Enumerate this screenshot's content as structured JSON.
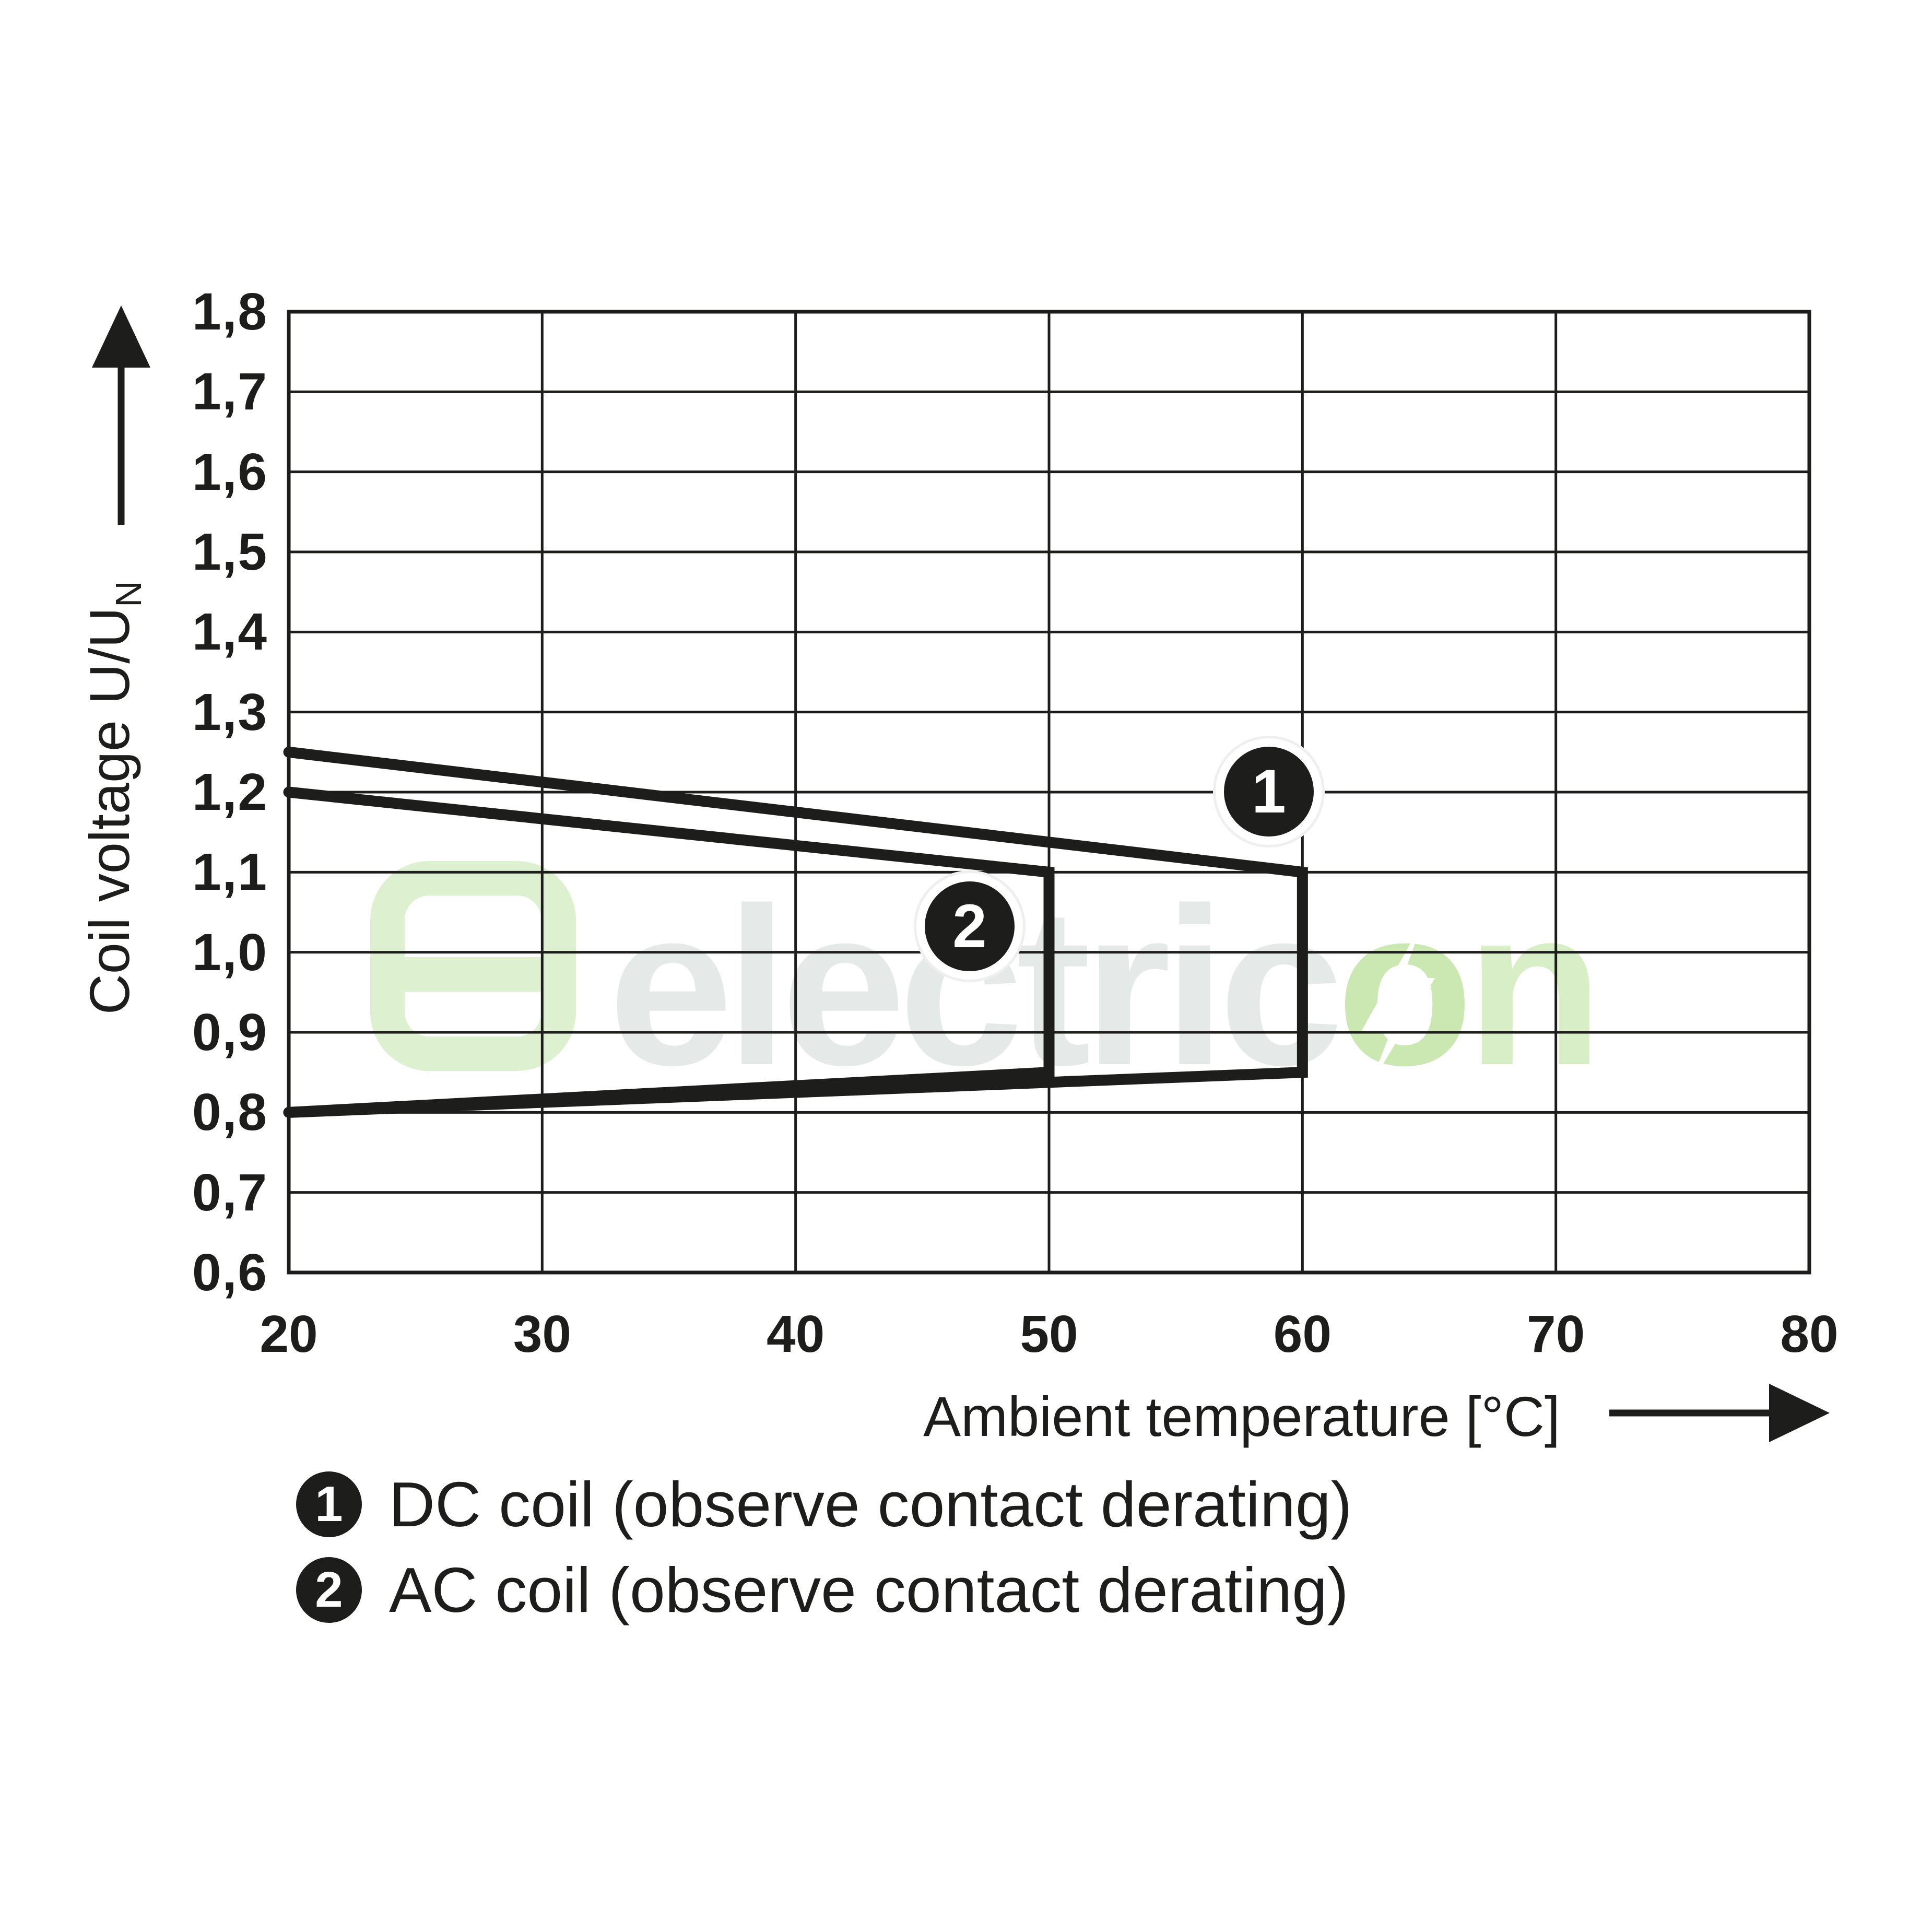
{
  "watermark": {
    "text_gray": "electric",
    "text_o": "o",
    "text_n": "n"
  },
  "y_axis": {
    "title_main": "Coil voltage U/U",
    "title_sub": "N",
    "tick_labels": [
      "1,8",
      "1,7",
      "1,6",
      "1,5",
      "1,4",
      "1,3",
      "1,2",
      "1,1",
      "1,0",
      "0,9",
      "0,8",
      "0,7",
      "0,6"
    ]
  },
  "x_axis": {
    "title": "Ambient temperature [°C]",
    "tick_labels": [
      "20",
      "30",
      "40",
      "50",
      "60",
      "70",
      "80"
    ]
  },
  "legend": {
    "items": [
      {
        "marker": "1",
        "label": "DC coil (observe contact derating)"
      },
      {
        "marker": "2",
        "label": "AC coil (observe contact derating)"
      }
    ]
  },
  "badges": {
    "badge1": "1",
    "badge2": "2"
  },
  "colors": {
    "line": "#1d1d1b",
    "grid": "#1d1d1b",
    "background": "#ffffff",
    "badge_fill": "#1d1d1b",
    "badge_text": "#ffffff",
    "watermark_gray": "#e5e9e8",
    "watermark_green_o": "#cbe7b2",
    "watermark_green_n": "#d8eec6",
    "logo_green": "#ddf1d0"
  },
  "chart_data": {
    "type": "line",
    "title": "",
    "xlabel": "Ambient temperature [°C]",
    "ylabel": "Coil voltage U/U_N",
    "xlim": [
      20,
      80
    ],
    "ylim": [
      0.6,
      1.8
    ],
    "x_ticks": [
      20,
      30,
      40,
      50,
      60,
      70,
      80
    ],
    "y_ticks": [
      0.6,
      0.7,
      0.8,
      0.9,
      1.0,
      1.1,
      1.2,
      1.3,
      1.4,
      1.5,
      1.6,
      1.7,
      1.8
    ],
    "grid": true,
    "legend_position": "below",
    "series": [
      {
        "name": "DC coil (observe contact derating)",
        "marker": "1",
        "points": [
          [
            20,
            1.25
          ],
          [
            60,
            1.1
          ],
          [
            60,
            0.85
          ],
          [
            20,
            0.8
          ]
        ],
        "badge_at": [
          59.0,
          1.19
        ]
      },
      {
        "name": "AC coil (observe contact derating)",
        "marker": "2",
        "points": [
          [
            20,
            1.2
          ],
          [
            50,
            1.1
          ],
          [
            50,
            0.85
          ],
          [
            20,
            0.8
          ]
        ],
        "badge_at": [
          47.2,
          1.02
        ]
      }
    ]
  }
}
